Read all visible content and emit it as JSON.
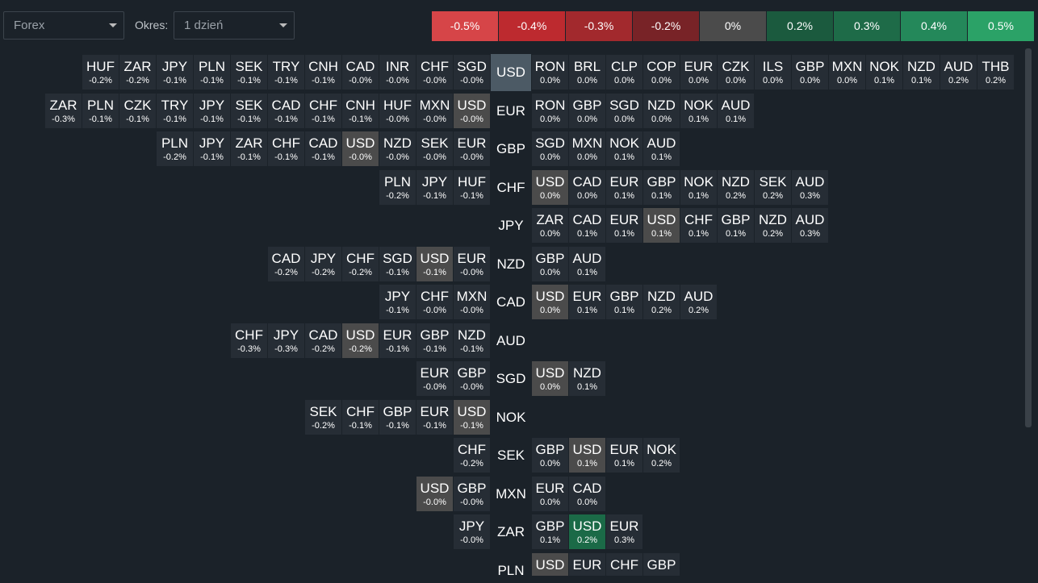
{
  "filters": {
    "market": "Forex",
    "period_label": "Okres:",
    "period": "1 dzień"
  },
  "legend": [
    {
      "label": "-0.5%",
      "color": "#d64548"
    },
    {
      "label": "-0.4%",
      "color": "#bd2a2f"
    },
    {
      "label": "-0.3%",
      "color": "#a2292d"
    },
    {
      "label": "-0.2%",
      "color": "#782327"
    },
    {
      "label": "0%",
      "color": "#4b4b4b"
    },
    {
      "label": "0.2%",
      "color": "#1b5a3e"
    },
    {
      "label": "0.3%",
      "color": "#1e6b48"
    },
    {
      "label": "0.4%",
      "color": "#24885a"
    },
    {
      "label": "0.5%",
      "color": "#2ba267"
    }
  ],
  "rows": [
    {
      "currency": "USD",
      "color": "#4c5a65",
      "left": [
        {
          "label": "HUF",
          "value": "-0.2%"
        },
        {
          "label": "ZAR",
          "value": "-0.2%"
        },
        {
          "label": "JPY",
          "value": "-0.1%"
        },
        {
          "label": "PLN",
          "value": "-0.1%"
        },
        {
          "label": "SEK",
          "value": "-0.1%"
        },
        {
          "label": "TRY",
          "value": "-0.1%"
        },
        {
          "label": "CNH",
          "value": "-0.1%"
        },
        {
          "label": "CAD",
          "value": "-0.0%"
        },
        {
          "label": "INR",
          "value": "-0.0%"
        },
        {
          "label": "CHF",
          "value": "-0.0%"
        },
        {
          "label": "SGD",
          "value": "-0.0%"
        }
      ],
      "right": [
        {
          "label": "RON",
          "value": "0.0%"
        },
        {
          "label": "BRL",
          "value": "0.0%"
        },
        {
          "label": "CLP",
          "value": "0.0%"
        },
        {
          "label": "COP",
          "value": "0.0%"
        },
        {
          "label": "EUR",
          "value": "0.0%"
        },
        {
          "label": "CZK",
          "value": "0.0%"
        },
        {
          "label": "ILS",
          "value": "0.0%"
        },
        {
          "label": "GBP",
          "value": "0.0%"
        },
        {
          "label": "MXN",
          "value": "0.0%"
        },
        {
          "label": "NOK",
          "value": "0.1%"
        },
        {
          "label": "NZD",
          "value": "0.1%"
        },
        {
          "label": "AUD",
          "value": "0.2%"
        },
        {
          "label": "THB",
          "value": "0.2%"
        }
      ]
    },
    {
      "currency": "EUR",
      "left": [
        {
          "label": "ZAR",
          "value": "-0.3%"
        },
        {
          "label": "PLN",
          "value": "-0.1%"
        },
        {
          "label": "CZK",
          "value": "-0.1%"
        },
        {
          "label": "TRY",
          "value": "-0.1%"
        },
        {
          "label": "JPY",
          "value": "-0.1%"
        },
        {
          "label": "SEK",
          "value": "-0.1%"
        },
        {
          "label": "CAD",
          "value": "-0.1%"
        },
        {
          "label": "CHF",
          "value": "-0.1%"
        },
        {
          "label": "CNH",
          "value": "-0.1%"
        },
        {
          "label": "HUF",
          "value": "-0.0%"
        },
        {
          "label": "MXN",
          "value": "-0.0%"
        },
        {
          "label": "USD",
          "value": "-0.0%",
          "color": "#4b4b4b"
        }
      ],
      "right": [
        {
          "label": "RON",
          "value": "0.0%"
        },
        {
          "label": "GBP",
          "value": "0.0%"
        },
        {
          "label": "SGD",
          "value": "0.0%"
        },
        {
          "label": "NZD",
          "value": "0.0%"
        },
        {
          "label": "NOK",
          "value": "0.1%"
        },
        {
          "label": "AUD",
          "value": "0.1%"
        }
      ]
    },
    {
      "currency": "GBP",
      "left": [
        {
          "label": "PLN",
          "value": "-0.2%"
        },
        {
          "label": "JPY",
          "value": "-0.1%"
        },
        {
          "label": "ZAR",
          "value": "-0.1%"
        },
        {
          "label": "CHF",
          "value": "-0.1%"
        },
        {
          "label": "CAD",
          "value": "-0.1%"
        },
        {
          "label": "USD",
          "value": "-0.0%",
          "color": "#4b4b4b"
        },
        {
          "label": "NZD",
          "value": "-0.0%"
        },
        {
          "label": "SEK",
          "value": "-0.0%"
        },
        {
          "label": "EUR",
          "value": "-0.0%"
        }
      ],
      "right": [
        {
          "label": "SGD",
          "value": "0.0%"
        },
        {
          "label": "MXN",
          "value": "0.0%"
        },
        {
          "label": "NOK",
          "value": "0.1%"
        },
        {
          "label": "AUD",
          "value": "0.1%"
        }
      ]
    },
    {
      "currency": "CHF",
      "left": [
        {
          "label": "PLN",
          "value": "-0.2%"
        },
        {
          "label": "JPY",
          "value": "-0.1%"
        },
        {
          "label": "HUF",
          "value": "-0.1%"
        }
      ],
      "right": [
        {
          "label": "USD",
          "value": "0.0%",
          "color": "#4b4b4b"
        },
        {
          "label": "CAD",
          "value": "0.0%"
        },
        {
          "label": "EUR",
          "value": "0.1%"
        },
        {
          "label": "GBP",
          "value": "0.1%"
        },
        {
          "label": "NOK",
          "value": "0.1%"
        },
        {
          "label": "NZD",
          "value": "0.2%"
        },
        {
          "label": "SEK",
          "value": "0.2%"
        },
        {
          "label": "AUD",
          "value": "0.3%"
        }
      ]
    },
    {
      "currency": "JPY",
      "left": [],
      "right": [
        {
          "label": "ZAR",
          "value": "0.0%"
        },
        {
          "label": "CAD",
          "value": "0.1%"
        },
        {
          "label": "EUR",
          "value": "0.1%"
        },
        {
          "label": "USD",
          "value": "0.1%",
          "color": "#4b4b4b"
        },
        {
          "label": "CHF",
          "value": "0.1%"
        },
        {
          "label": "GBP",
          "value": "0.1%"
        },
        {
          "label": "NZD",
          "value": "0.2%"
        },
        {
          "label": "AUD",
          "value": "0.3%"
        }
      ]
    },
    {
      "currency": "NZD",
      "left": [
        {
          "label": "CAD",
          "value": "-0.2%"
        },
        {
          "label": "JPY",
          "value": "-0.2%"
        },
        {
          "label": "CHF",
          "value": "-0.2%"
        },
        {
          "label": "SGD",
          "value": "-0.1%"
        },
        {
          "label": "USD",
          "value": "-0.1%",
          "color": "#4b4b4b"
        },
        {
          "label": "EUR",
          "value": "-0.0%"
        }
      ],
      "right": [
        {
          "label": "GBP",
          "value": "0.0%"
        },
        {
          "label": "AUD",
          "value": "0.1%"
        }
      ]
    },
    {
      "currency": "CAD",
      "left": [
        {
          "label": "JPY",
          "value": "-0.1%"
        },
        {
          "label": "CHF",
          "value": "-0.0%"
        },
        {
          "label": "MXN",
          "value": "-0.0%"
        }
      ],
      "right": [
        {
          "label": "USD",
          "value": "0.0%",
          "color": "#4b4b4b"
        },
        {
          "label": "EUR",
          "value": "0.1%"
        },
        {
          "label": "GBP",
          "value": "0.1%"
        },
        {
          "label": "NZD",
          "value": "0.2%"
        },
        {
          "label": "AUD",
          "value": "0.2%"
        }
      ]
    },
    {
      "currency": "AUD",
      "left": [
        {
          "label": "CHF",
          "value": "-0.3%"
        },
        {
          "label": "JPY",
          "value": "-0.3%"
        },
        {
          "label": "CAD",
          "value": "-0.2%"
        },
        {
          "label": "USD",
          "value": "-0.2%",
          "color": "#4b4b4b"
        },
        {
          "label": "EUR",
          "value": "-0.1%"
        },
        {
          "label": "GBP",
          "value": "-0.1%"
        },
        {
          "label": "NZD",
          "value": "-0.1%"
        }
      ],
      "right": []
    },
    {
      "currency": "SGD",
      "left": [
        {
          "label": "EUR",
          "value": "-0.0%"
        },
        {
          "label": "GBP",
          "value": "-0.0%"
        }
      ],
      "right": [
        {
          "label": "USD",
          "value": "0.0%",
          "color": "#4b4b4b"
        },
        {
          "label": "NZD",
          "value": "0.1%"
        }
      ]
    },
    {
      "currency": "NOK",
      "left": [
        {
          "label": "SEK",
          "value": "-0.2%"
        },
        {
          "label": "CHF",
          "value": "-0.1%"
        },
        {
          "label": "GBP",
          "value": "-0.1%"
        },
        {
          "label": "EUR",
          "value": "-0.1%"
        },
        {
          "label": "USD",
          "value": "-0.1%",
          "color": "#4b4b4b"
        }
      ],
      "right": []
    },
    {
      "currency": "SEK",
      "left": [
        {
          "label": "CHF",
          "value": "-0.2%"
        }
      ],
      "right": [
        {
          "label": "GBP",
          "value": "0.0%"
        },
        {
          "label": "USD",
          "value": "0.1%",
          "color": "#4b4b4b"
        },
        {
          "label": "EUR",
          "value": "0.1%"
        },
        {
          "label": "NOK",
          "value": "0.2%"
        }
      ]
    },
    {
      "currency": "MXN",
      "left": [
        {
          "label": "USD",
          "value": "-0.0%",
          "color": "#4b4b4b"
        },
        {
          "label": "GBP",
          "value": "-0.0%"
        }
      ],
      "right": [
        {
          "label": "EUR",
          "value": "0.0%"
        },
        {
          "label": "CAD",
          "value": "0.0%"
        }
      ]
    },
    {
      "currency": "ZAR",
      "left": [
        {
          "label": "JPY",
          "value": "-0.0%"
        }
      ],
      "right": [
        {
          "label": "GBP",
          "value": "0.1%"
        },
        {
          "label": "USD",
          "value": "0.2%",
          "color": "#1b6a47"
        },
        {
          "label": "EUR",
          "value": "0.3%"
        }
      ]
    },
    {
      "currency": "PLN",
      "left": [],
      "right": [
        {
          "label": "USD",
          "color": "#4b4b4b"
        },
        {
          "label": "EUR"
        },
        {
          "label": "CHF"
        },
        {
          "label": "GBP"
        }
      ]
    }
  ]
}
